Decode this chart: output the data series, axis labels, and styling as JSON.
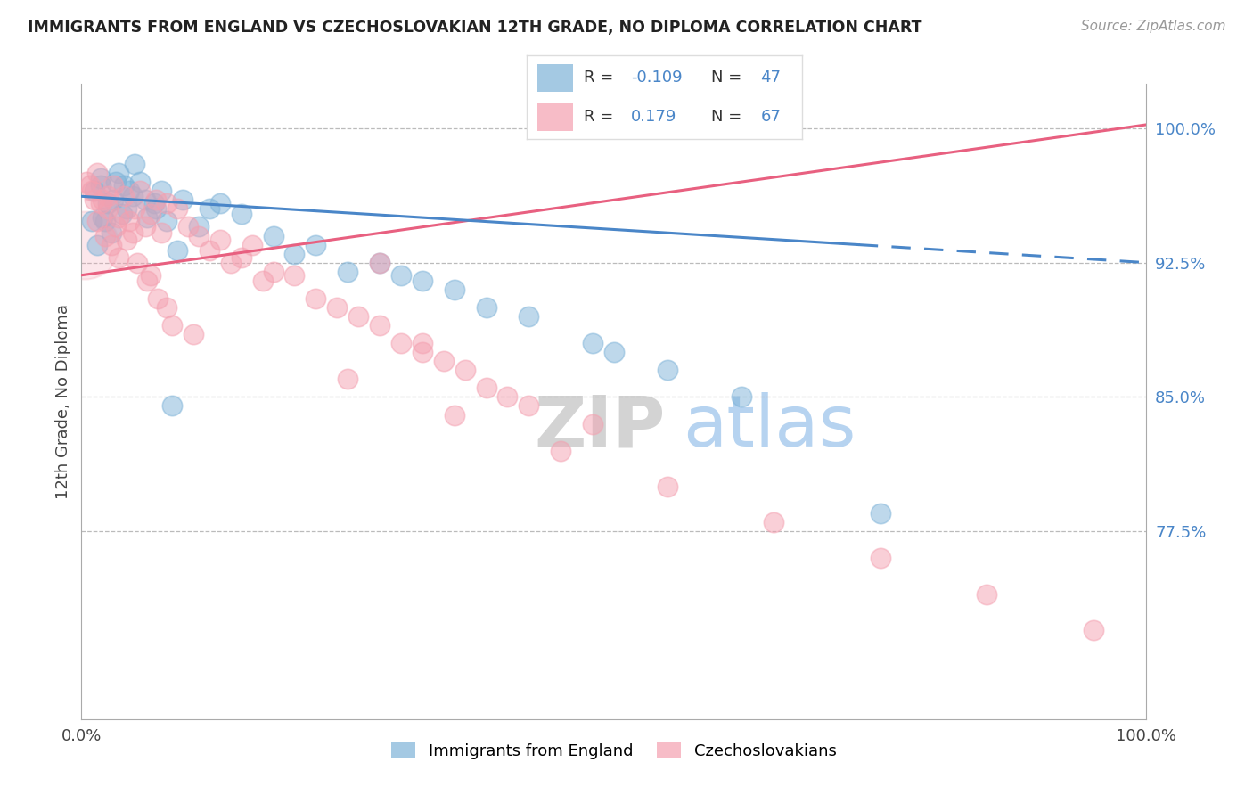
{
  "title": "IMMIGRANTS FROM ENGLAND VS CZECHOSLOVAKIAN 12TH GRADE, NO DIPLOMA CORRELATION CHART",
  "source": "Source: ZipAtlas.com",
  "ylabel": "12th Grade, No Diploma",
  "right_yticks": [
    100.0,
    92.5,
    85.0,
    77.5
  ],
  "right_ytick_labels": [
    "100.0%",
    "92.5%",
    "85.0%",
    "77.5%"
  ],
  "blue_R": -0.109,
  "blue_N": 47,
  "pink_R": 0.179,
  "pink_N": 67,
  "blue_color": "#7EB3D8",
  "pink_color": "#F4A0B0",
  "blue_line_color": "#4A86C8",
  "pink_line_color": "#E86080",
  "blue_label": "Immigrants from England",
  "pink_label": "Czechoslovakians",
  "xlim": [
    0.0,
    100.0
  ],
  "ylim": [
    67.0,
    102.5
  ],
  "bg_color": "#FFFFFF",
  "dashed_start_x": 73.0,
  "blue_line_x0": 0.0,
  "blue_line_y0": 96.2,
  "blue_line_x1": 100.0,
  "blue_line_y1": 92.5,
  "pink_line_x0": 0.0,
  "pink_line_y0": 91.8,
  "pink_line_x1": 100.0,
  "pink_line_y1": 100.2,
  "blue_scatter_x": [
    1.2,
    1.8,
    2.5,
    3.0,
    4.2,
    4.8,
    5.5,
    6.2,
    7.0,
    8.0,
    9.5,
    11.0,
    13.0,
    15.0,
    18.0,
    22.0,
    28.0,
    35.0,
    42.0,
    48.0,
    55.0,
    62.0,
    5.0,
    7.5,
    3.5,
    2.0,
    1.5,
    6.8,
    9.0,
    4.0,
    2.8,
    1.0,
    3.2,
    12.0,
    25.0,
    38.0,
    50.0,
    32.0,
    8.5,
    4.5,
    2.2,
    1.8,
    3.8,
    6.0,
    20.0,
    30.0,
    75.0
  ],
  "blue_scatter_y": [
    96.5,
    97.2,
    95.8,
    96.0,
    95.5,
    96.2,
    97.0,
    95.0,
    95.5,
    94.8,
    96.0,
    94.5,
    95.8,
    95.2,
    94.0,
    93.5,
    92.5,
    91.0,
    89.5,
    88.0,
    86.5,
    85.0,
    98.0,
    96.5,
    97.5,
    95.0,
    93.5,
    95.8,
    93.2,
    96.8,
    94.2,
    94.8,
    97.0,
    95.5,
    92.0,
    90.0,
    87.5,
    91.5,
    84.5,
    96.5,
    94.8,
    96.8,
    95.2,
    96.0,
    93.0,
    91.8,
    78.5
  ],
  "pink_scatter_x": [
    0.5,
    1.0,
    1.5,
    2.0,
    2.5,
    3.0,
    3.5,
    4.0,
    4.5,
    5.0,
    5.5,
    6.0,
    6.5,
    7.0,
    7.5,
    8.0,
    9.0,
    10.0,
    11.0,
    12.0,
    13.0,
    14.0,
    15.0,
    16.0,
    17.0,
    18.0,
    20.0,
    22.0,
    24.0,
    26.0,
    28.0,
    30.0,
    32.0,
    34.0,
    36.0,
    38.0,
    40.0,
    42.0,
    1.2,
    1.8,
    2.2,
    2.8,
    3.2,
    4.2,
    5.2,
    6.2,
    7.2,
    8.5,
    0.8,
    1.5,
    2.5,
    3.5,
    4.8,
    6.5,
    8.0,
    10.5,
    25.0,
    35.0,
    45.0,
    55.0,
    65.0,
    75.0,
    85.0,
    95.0,
    48.0,
    32.0,
    28.0
  ],
  "pink_scatter_y": [
    97.0,
    96.5,
    97.5,
    96.0,
    95.5,
    96.8,
    95.0,
    96.2,
    94.8,
    95.5,
    96.5,
    94.5,
    95.2,
    96.0,
    94.2,
    95.8,
    95.5,
    94.5,
    94.0,
    93.2,
    93.8,
    92.5,
    92.8,
    93.5,
    91.5,
    92.0,
    91.8,
    90.5,
    90.0,
    89.5,
    89.0,
    88.0,
    87.5,
    87.0,
    86.5,
    85.5,
    85.0,
    84.5,
    96.0,
    95.8,
    94.0,
    93.5,
    94.5,
    93.8,
    92.5,
    91.5,
    90.5,
    89.0,
    96.8,
    94.8,
    96.2,
    92.8,
    94.2,
    91.8,
    90.0,
    88.5,
    86.0,
    84.0,
    82.0,
    80.0,
    78.0,
    76.0,
    74.0,
    72.0,
    83.5,
    88.0,
    92.5
  ],
  "large_pink_x": 0.3,
  "large_pink_y": 93.5,
  "large_pink_size": 3000
}
